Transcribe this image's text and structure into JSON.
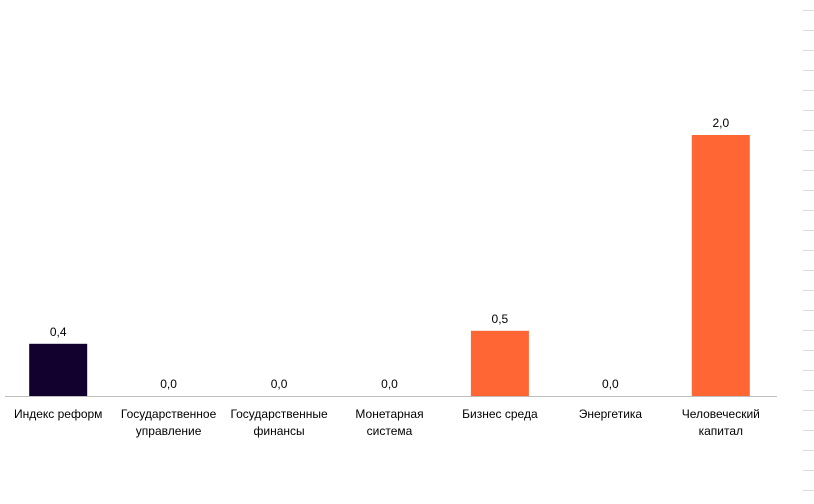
{
  "chart_data": {
    "type": "bar",
    "categories": [
      [
        "Индекс реформ"
      ],
      [
        "Государственное",
        "управление"
      ],
      [
        "Государственные",
        "финансы"
      ],
      [
        "Монетарная",
        "система"
      ],
      [
        "Бизнес среда"
      ],
      [
        "Энергетика"
      ],
      [
        "Человеческий",
        "капитал"
      ]
    ],
    "values": [
      0.4,
      0.0,
      0.0,
      0.0,
      0.5,
      0.0,
      2.0
    ],
    "data_labels": [
      "0,4",
      "0,0",
      "0,0",
      "0,0",
      "0,5",
      "0,0",
      "2,0"
    ],
    "colors": [
      "#12002e",
      "#ff6633",
      "#ff6633",
      "#ff6633",
      "#ff6633",
      "#ff6633",
      "#ff6633"
    ],
    "ylim": [
      0,
      2.5
    ],
    "grid": false,
    "legend": "none"
  }
}
